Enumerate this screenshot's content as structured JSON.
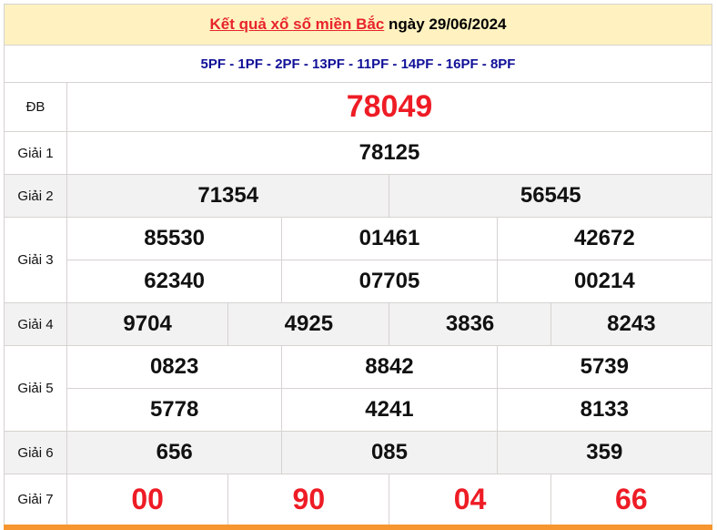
{
  "header": {
    "title_link": "Kết quả xổ số miền Bắc",
    "date_text": "ngày 29/06/2024"
  },
  "codes": "5PF - 1PF - 2PF - 13PF - 11PF - 14PF - 16PF - 8PF",
  "prizes": {
    "db": {
      "label": "ĐB",
      "numbers": [
        "78049"
      ]
    },
    "g1": {
      "label": "Giải 1",
      "numbers": [
        "78125"
      ]
    },
    "g2": {
      "label": "Giải 2",
      "numbers": [
        "71354",
        "56545"
      ]
    },
    "g3": {
      "label": "Giải 3",
      "numbers": [
        "85530",
        "01461",
        "42672",
        "62340",
        "07705",
        "00214"
      ]
    },
    "g4": {
      "label": "Giải 4",
      "numbers": [
        "9704",
        "4925",
        "3836",
        "8243"
      ]
    },
    "g5": {
      "label": "Giải 5",
      "numbers": [
        "0823",
        "8842",
        "5739",
        "5778",
        "4241",
        "8133"
      ]
    },
    "g6": {
      "label": "Giải 6",
      "numbers": [
        "656",
        "085",
        "359"
      ]
    },
    "g7": {
      "label": "Giải 7",
      "numbers": [
        "00",
        "90",
        "04",
        "66"
      ]
    }
  },
  "colors": {
    "accent_red": "#ee1c25",
    "code_blue": "#101098",
    "header_bg": "#fff2c0",
    "footer_bar": "#f7962e"
  }
}
